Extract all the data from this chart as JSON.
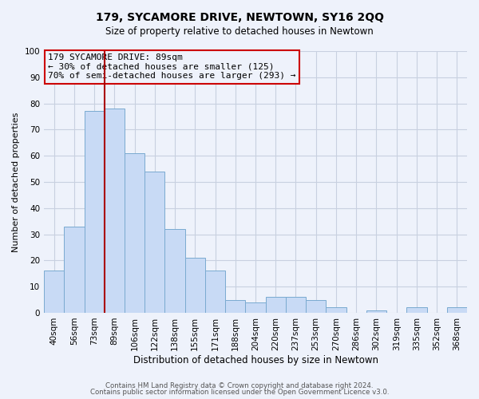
{
  "title": "179, SYCAMORE DRIVE, NEWTOWN, SY16 2QQ",
  "subtitle": "Size of property relative to detached houses in Newtown",
  "xlabel": "Distribution of detached houses by size in Newtown",
  "ylabel": "Number of detached properties",
  "bin_labels": [
    "40sqm",
    "56sqm",
    "73sqm",
    "89sqm",
    "106sqm",
    "122sqm",
    "138sqm",
    "155sqm",
    "171sqm",
    "188sqm",
    "204sqm",
    "220sqm",
    "237sqm",
    "253sqm",
    "270sqm",
    "286sqm",
    "302sqm",
    "319sqm",
    "335sqm",
    "352sqm",
    "368sqm"
  ],
  "bar_heights": [
    16,
    33,
    77,
    78,
    61,
    54,
    32,
    21,
    16,
    5,
    4,
    6,
    6,
    5,
    2,
    0,
    1,
    0,
    2,
    0,
    2
  ],
  "bar_color": "#c8daf5",
  "bar_edge_color": "#7aaad0",
  "vline_x_index": 3,
  "vline_color": "#aa0000",
  "annotation_text": "179 SYCAMORE DRIVE: 89sqm\n← 30% of detached houses are smaller (125)\n70% of semi-detached houses are larger (293) →",
  "annotation_box_edge": "#cc0000",
  "ylim": [
    0,
    100
  ],
  "yticks": [
    0,
    10,
    20,
    30,
    40,
    50,
    60,
    70,
    80,
    90,
    100
  ],
  "footer_line1": "Contains HM Land Registry data © Crown copyright and database right 2024.",
  "footer_line2": "Contains public sector information licensed under the Open Government Licence v3.0.",
  "bg_color": "#eef2fb",
  "grid_color": "#c8d0e0"
}
